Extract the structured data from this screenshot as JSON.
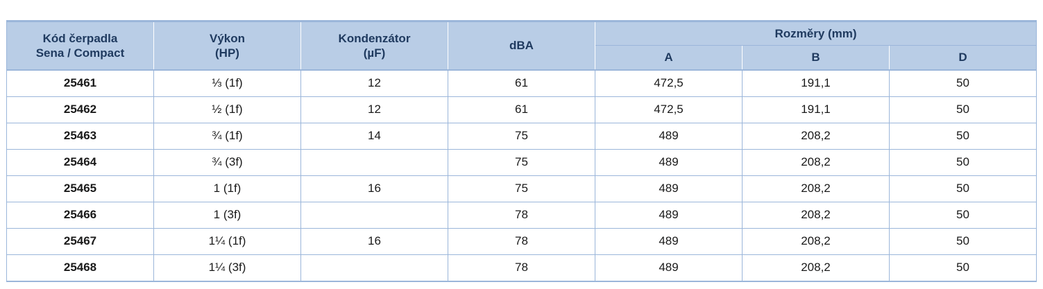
{
  "table": {
    "headers": {
      "code_line1": "Kód čerpadla",
      "code_line2": "Sena / Compact",
      "power_line1": "Výkon",
      "power_line2": "(HP)",
      "capacitor_line1": "Kondenzátor",
      "capacitor_line2": "(µF)",
      "dba": "dBA",
      "dimensions_group": "Rozměry (mm)",
      "dim_a": "A",
      "dim_b": "B",
      "dim_d": "D"
    },
    "rows": [
      {
        "code": "25461",
        "power": "⅓ (1f)",
        "capacitor": "12",
        "dba": "61",
        "a": "472,5",
        "b": "191,1",
        "d": "50"
      },
      {
        "code": "25462",
        "power": "½ (1f)",
        "capacitor": "12",
        "dba": "61",
        "a": "472,5",
        "b": "191,1",
        "d": "50"
      },
      {
        "code": "25463",
        "power": "¾ (1f)",
        "capacitor": "14",
        "dba": "75",
        "a": "489",
        "b": "208,2",
        "d": "50"
      },
      {
        "code": "25464",
        "power": "¾ (3f)",
        "capacitor": "",
        "dba": "75",
        "a": "489",
        "b": "208,2",
        "d": "50"
      },
      {
        "code": "25465",
        "power": "1 (1f)",
        "capacitor": "16",
        "dba": "75",
        "a": "489",
        "b": "208,2",
        "d": "50"
      },
      {
        "code": "25466",
        "power": "1 (3f)",
        "capacitor": "",
        "dba": "78",
        "a": "489",
        "b": "208,2",
        "d": "50"
      },
      {
        "code": "25467",
        "power": "1¼ (1f)",
        "capacitor": "16",
        "dba": "78",
        "a": "489",
        "b": "208,2",
        "d": "50"
      },
      {
        "code": "25468",
        "power": "1¼ (3f)",
        "capacitor": "",
        "dba": "78",
        "a": "489",
        "b": "208,2",
        "d": "50"
      }
    ]
  },
  "colors": {
    "header_background": "#b9cde6",
    "header_text": "#1f3a5f",
    "grid_lines": "#9bb6da"
  }
}
